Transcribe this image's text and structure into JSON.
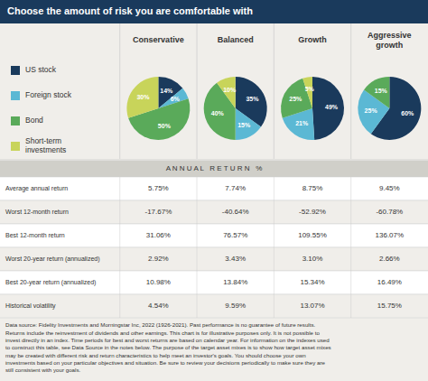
{
  "title": "Choose the amount of risk you are comfortable with",
  "chart_data": [
    {
      "type": "pie",
      "title": "Conservative",
      "categories": [
        "US stock",
        "Foreign stock",
        "Bond",
        "Short-term\ninvestments"
      ],
      "values": [
        14,
        6,
        50,
        30
      ],
      "value_labels": [
        "14%",
        "6%",
        "50%",
        "30%"
      ],
      "colors": [
        "#1a3a5c",
        "#5bb8d4",
        "#5aaa5a",
        "#c8d45a"
      ],
      "data_labels": true,
      "legend": "left"
    },
    {
      "type": "pie",
      "title": "Balanced",
      "categories": [
        "US stock",
        "Foreign stock",
        "Bond",
        "Short-term\ninvestments"
      ],
      "values": [
        35,
        15,
        40,
        10
      ],
      "value_labels": [
        "35%",
        "15%",
        "40%",
        "10%"
      ],
      "colors": [
        "#1a3a5c",
        "#5bb8d4",
        "#5aaa5a",
        "#c8d45a"
      ],
      "data_labels": true
    },
    {
      "type": "pie",
      "title": "Growth",
      "categories": [
        "US stock",
        "Foreign stock",
        "Bond",
        "Short-term\ninvestments"
      ],
      "values": [
        49,
        21,
        25,
        5
      ],
      "value_labels": [
        "49%",
        "21%",
        "25%",
        "5%"
      ],
      "colors": [
        "#1a3a5c",
        "#5bb8d4",
        "#5aaa5a",
        "#c8d45a"
      ],
      "data_labels": true
    },
    {
      "type": "pie",
      "title": "Aggressive\ngrowth",
      "categories": [
        "US stock",
        "Foreign stock",
        "Bond",
        "Short-term\ninvestments"
      ],
      "values": [
        60,
        25,
        15,
        0
      ],
      "value_labels": [
        "60%",
        "25%",
        "15%",
        null
      ],
      "colors": [
        "#1a3a5c",
        "#5bb8d4",
        "#5aaa5a",
        "#c8d45a"
      ],
      "data_labels": true
    }
  ],
  "table": {
    "title": "A N N U A L   R E T U R N   %",
    "rows": [
      "Average annual return",
      "Worst 12-month return",
      "Best 12-month return",
      "Worst 20-year return (annualized)",
      "Best 20-year return (annualized)",
      "Historical volatility"
    ],
    "values": [
      [
        {
          "value": 5.75,
          "label": "5.75%"
        },
        {
          "value": 7.74,
          "label": "7.74%"
        },
        {
          "value": 8.75,
          "label": "8.75%"
        },
        {
          "value": 9.45,
          "label": "9.45%"
        }
      ],
      [
        {
          "value": -17.67,
          "label": "-17.67%"
        },
        {
          "value": -40.64,
          "label": "-40.64%"
        },
        {
          "value": -52.92,
          "label": "-52.92%"
        },
        {
          "value": -60.78,
          "label": "-60.78%"
        }
      ],
      [
        {
          "value": 31.06,
          "label": "31.06%"
        },
        {
          "value": 76.57,
          "label": "76.57%"
        },
        {
          "value": 109.55,
          "label": "109.55%"
        },
        {
          "value": 136.07,
          "label": "136.07%"
        }
      ],
      [
        {
          "value": 2.92,
          "label": "2.92%"
        },
        {
          "value": 3.43,
          "label": "3.43%"
        },
        {
          "value": 3.1,
          "label": "3.10%"
        },
        {
          "value": 2.66,
          "label": "2.66%"
        }
      ],
      [
        {
          "value": 10.98,
          "label": "10.98%"
        },
        {
          "value": 13.84,
          "label": "13.84%"
        },
        {
          "value": 15.34,
          "label": "15.34%"
        },
        {
          "value": 16.49,
          "label": "16.49%"
        }
      ],
      [
        {
          "value": 4.54,
          "label": "4.54%"
        },
        {
          "value": 9.59,
          "label": "9.59%"
        },
        {
          "value": 13.07,
          "label": "13.07%"
        },
        {
          "value": 15.75,
          "label": "15.75%"
        }
      ]
    ]
  },
  "footnote": "Data source: Fidelity Investments and Morningstar Inc, 2022 (1926-2021). Past performance is no guarantee of future results.\nReturns include the reinvestment of dividends and other earnings. This chart is for illustrative purposes only. It is not possible to\ninvest directly in an index. Time periods for best and worst returns are based on calendar year. For information on the indexes used\nto construct this table, see Data Source in the notes below. The purpose of the target asset mixes is to show how target asset mixes\nmay be created with different risk and return characteristics to help meet an investor's goals. You should choose your own\ninvestments based on your particular objectives and situation. Be sure to review your decisions periodically to make sure they are\nstill consistent with your goals."
}
